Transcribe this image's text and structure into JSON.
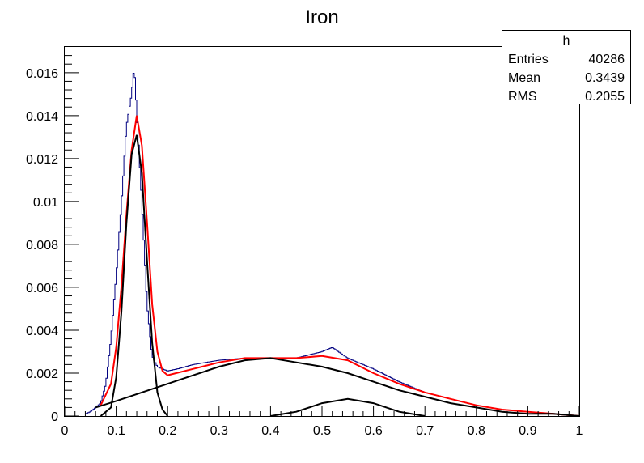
{
  "chart_data": {
    "type": "histogram",
    "title": "Iron",
    "xlabel": "",
    "ylabel": "",
    "xlim": [
      0,
      1
    ],
    "ylim": [
      0,
      0.0172
    ],
    "x_ticks": [
      "0",
      "0.1",
      "0.2",
      "0.3",
      "0.4",
      "0.5",
      "0.6",
      "0.7",
      "0.8",
      "0.9",
      "1"
    ],
    "y_ticks": [
      "0",
      "0.002",
      "0.004",
      "0.006",
      "0.008",
      "0.01",
      "0.012",
      "0.014",
      "0.016"
    ],
    "grid": false,
    "colors": {
      "histogram": "#000080",
      "fit_total": "#ff0000",
      "components": "#000000"
    },
    "stats_box": {
      "name": "h",
      "rows": [
        {
          "label": "Entries",
          "value": "40286"
        },
        {
          "label": "Mean",
          "value": "0.3439"
        },
        {
          "label": "RMS",
          "value": "0.2055"
        }
      ]
    },
    "histogram": {
      "x": [
        0.04,
        0.05,
        0.06,
        0.07,
        0.08,
        0.09,
        0.1,
        0.11,
        0.12,
        0.13,
        0.135,
        0.14,
        0.15,
        0.16,
        0.17,
        0.18,
        0.19,
        0.2,
        0.22,
        0.25,
        0.3,
        0.35,
        0.4,
        0.45,
        0.5,
        0.52,
        0.55,
        0.6,
        0.65,
        0.7,
        0.75,
        0.8,
        0.85,
        0.9,
        0.95,
        1.0
      ],
      "y": [
        0.0001,
        0.0002,
        0.0004,
        0.0006,
        0.0015,
        0.0036,
        0.0065,
        0.0098,
        0.0135,
        0.015,
        0.0163,
        0.0142,
        0.01,
        0.0052,
        0.0028,
        0.0023,
        0.0022,
        0.0021,
        0.0022,
        0.0024,
        0.0026,
        0.0027,
        0.0027,
        0.0027,
        0.003,
        0.0032,
        0.0027,
        0.0022,
        0.0016,
        0.0011,
        0.0008,
        0.0005,
        0.0003,
        0.0002,
        0.0001,
        0.0
      ]
    },
    "series": [
      {
        "name": "",
        "role": "total fit",
        "x": [
          0.07,
          0.09,
          0.1,
          0.11,
          0.12,
          0.13,
          0.14,
          0.15,
          0.16,
          0.17,
          0.18,
          0.19,
          0.2,
          0.25,
          0.3,
          0.35,
          0.4,
          0.45,
          0.5,
          0.55,
          0.6,
          0.65,
          0.7,
          0.75,
          0.8,
          0.85,
          0.9,
          0.95,
          1.0
        ],
        "y": [
          0.0005,
          0.0015,
          0.0032,
          0.006,
          0.0094,
          0.0124,
          0.014,
          0.0126,
          0.009,
          0.0052,
          0.003,
          0.0021,
          0.0019,
          0.0022,
          0.0025,
          0.0027,
          0.0027,
          0.0027,
          0.0028,
          0.0026,
          0.002,
          0.0015,
          0.0011,
          0.0008,
          0.0005,
          0.0003,
          0.0002,
          0.0001,
          0.0
        ]
      },
      {
        "name": "",
        "role": "peak component",
        "x": [
          0.07,
          0.09,
          0.1,
          0.11,
          0.12,
          0.13,
          0.14,
          0.15,
          0.16,
          0.17,
          0.18,
          0.19,
          0.2
        ],
        "y": [
          0.0,
          0.0004,
          0.0018,
          0.0048,
          0.009,
          0.0122,
          0.0131,
          0.0113,
          0.0072,
          0.0034,
          0.0011,
          0.0003,
          0.0
        ]
      },
      {
        "name": "",
        "role": "broad component",
        "x": [
          0.06,
          0.1,
          0.15,
          0.2,
          0.25,
          0.3,
          0.35,
          0.4,
          0.45,
          0.5,
          0.55,
          0.6,
          0.65,
          0.7,
          0.75,
          0.8,
          0.85,
          0.9,
          0.95,
          1.0
        ],
        "y": [
          0.0004,
          0.0007,
          0.0011,
          0.0015,
          0.0019,
          0.0023,
          0.0026,
          0.0027,
          0.0025,
          0.0023,
          0.002,
          0.0016,
          0.0012,
          0.0009,
          0.0006,
          0.0004,
          0.0002,
          0.0001,
          0.0001,
          0.0
        ]
      },
      {
        "name": "",
        "role": "secondary component",
        "x": [
          0.4,
          0.45,
          0.5,
          0.55,
          0.6,
          0.65,
          0.7
        ],
        "y": [
          0.0,
          0.0002,
          0.0006,
          0.0008,
          0.0006,
          0.0002,
          0.0
        ]
      }
    ]
  }
}
